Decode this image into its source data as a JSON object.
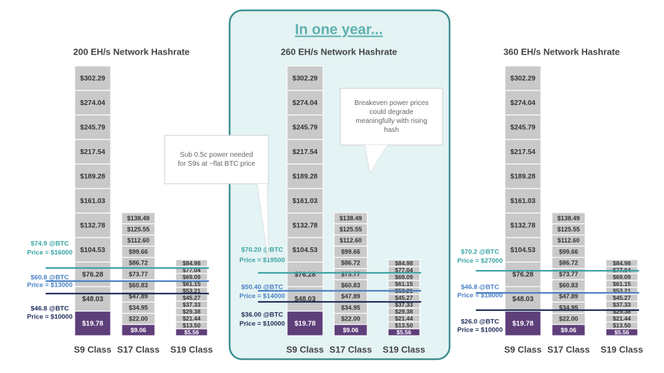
{
  "heading": "In one year...",
  "panels": [
    {
      "title": "200 EH/s Network  Hashrate",
      "columns": [
        {
          "name": "S9 Class",
          "cells": [
            "$302.29",
            "$274.04",
            "$245.79",
            "$217.54",
            "$189.28",
            "$161.03",
            "$132.78",
            "$104.53",
            "$76.28",
            "$48.03",
            "$19.78"
          ]
        },
        {
          "name": "S17 Class",
          "cells": [
            "$138.49",
            "$125.55",
            "$112.60",
            "$99.66",
            "$86.72",
            "$73.77",
            "$60.83",
            "$47.89",
            "$34.95",
            "$22.00",
            "$9.06"
          ]
        },
        {
          "name": "S19 Class",
          "cells": [
            "$84.98",
            "$77.04",
            "$69.09",
            "$61.15",
            "$53.21",
            "$45.27",
            "$37.33",
            "$29.38",
            "$21.44",
            "$13.50",
            "$5.56"
          ]
        }
      ],
      "lines": [
        {
          "price": "$74.9 @BTC",
          "btc": "Price = $16000",
          "color": "#3aa3a3"
        },
        {
          "price": "$60.8 @BTC",
          "btc": "Price = $13000",
          "color": "#4a80c4"
        },
        {
          "price": "$46.8 @BTC",
          "btc": "Price = $10000",
          "color": "#1f2d5a"
        }
      ],
      "callout": [
        "Sub 0.5c power needed",
        "for S9s at ~flat BTC price"
      ]
    },
    {
      "title": "260 EH/s Network  Hashrate",
      "columns": [
        {
          "name": "S9 Class",
          "cells": [
            "$302.29",
            "$274.04",
            "$245.79",
            "$217.54",
            "$189.28",
            "$161.03",
            "$132.78",
            "$104.53",
            "$76.28",
            "$48.03",
            "$19.78"
          ]
        },
        {
          "name": "S17 Class",
          "cells": [
            "$138.49",
            "$125.55",
            "$112.60",
            "$99.66",
            "$86.72",
            "$73.77",
            "$60.83",
            "$47.89",
            "$34.95",
            "$22.00",
            "$9.06"
          ]
        },
        {
          "name": "S19 Class",
          "cells": [
            "$84.98",
            "$77.04",
            "$69.09",
            "$61.15",
            "$53.21",
            "$45.27",
            "$37.33",
            "$29.38",
            "$21.44",
            "$13.50",
            "$5.56"
          ]
        }
      ],
      "lines": [
        {
          "price": "$70.20 @BTC",
          "btc": "Price = $19500",
          "color": "#3aa3a3"
        },
        {
          "price": "$50.40 @BTC",
          "btc": "Price = $14000",
          "color": "#4a80c4"
        },
        {
          "price": "$36.00 @BTC",
          "btc": "Price = $10000",
          "color": "#1f2d5a"
        }
      ],
      "callout": [
        "Breakeven power prices",
        "could degrade",
        "meaningfully with rising",
        "hash"
      ]
    },
    {
      "title": "360 EH/s Network  Hashrate",
      "columns": [
        {
          "name": "S9 Class",
          "cells": [
            "$302.29",
            "$274.04",
            "$245.79",
            "$217.54",
            "$189.28",
            "$161.03",
            "$132.78",
            "$104.53",
            "$76.28",
            "$48.03",
            "$19.78"
          ]
        },
        {
          "name": "S17 Class",
          "cells": [
            "$138.49",
            "$125.55",
            "$112.60",
            "$99.66",
            "$86.72",
            "$73.77",
            "$60.83",
            "$47.89",
            "$34.95",
            "$22.00",
            "$9.06"
          ]
        },
        {
          "name": "S19 Class",
          "cells": [
            "$84.98",
            "$77.04",
            "$69.09",
            "$61.15",
            "$53.21",
            "$45.27",
            "$37.33",
            "$29.38",
            "$21.44",
            "$13.50",
            "$5.56"
          ]
        }
      ],
      "lines": [
        {
          "price": "$70.2 @BTC",
          "btc": "Price = $27000",
          "color": "#3aa3a3"
        },
        {
          "price": "$46.8 @BTC",
          "btc": "Price = $18000",
          "color": "#4a80c4"
        },
        {
          "price": "$26.0 @BTC",
          "btc": "Price = $10000",
          "color": "#1f2d5a"
        }
      ]
    }
  ]
}
